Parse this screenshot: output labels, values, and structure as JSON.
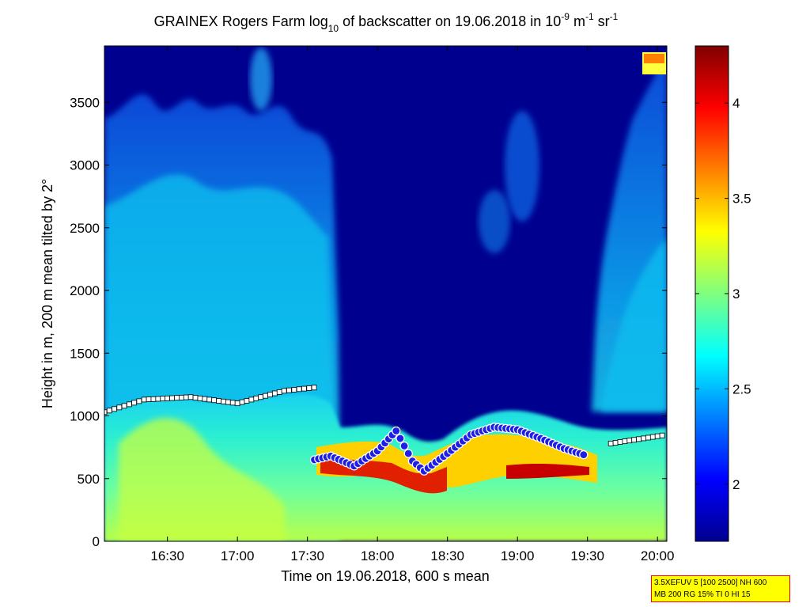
{
  "chart_data": {
    "type": "heatmap",
    "title": {
      "pre": "GRAINEX Rogers Farm log",
      "sub": "10",
      "mid": " of backscatter on 19.06.2018 in 10",
      "sup1": "-9",
      "unit1": " m",
      "sup2": "-1",
      "unit2": " sr",
      "sup3": "-1"
    },
    "xlabel": "Time on 19.06.2018, 600 s mean",
    "ylabel": "Height in m, 200 m mean tilted by 2°",
    "x_range": [
      "16:03",
      "20:04"
    ],
    "x_ticks": [
      "16:30",
      "17:00",
      "17:30",
      "18:00",
      "18:30",
      "19:00",
      "19:30",
      "20:00"
    ],
    "ylim": [
      0,
      3950
    ],
    "y_ticks": [
      "0",
      "500",
      "1000",
      "1500",
      "2000",
      "2500",
      "3000",
      "3500"
    ],
    "colorbar": {
      "range": [
        1.7,
        4.3
      ],
      "ticks": [
        "2",
        "2.5",
        "3",
        "3.5",
        "4"
      ],
      "colormap": "jet"
    },
    "colors": {
      "background_sky": "#00008f",
      "aerosol_layer": "#bfff40",
      "mixing_layer_top_marker": "#1e1ee6",
      "high_backscatter": "#c80000"
    },
    "mixing_layer_height": {
      "x": [
        "17:33",
        "17:40",
        "17:50",
        "18:00",
        "18:08",
        "18:15",
        "18:20",
        "18:30",
        "18:40",
        "18:50",
        "19:00",
        "19:10",
        "19:20",
        "19:30"
      ],
      "y": [
        650,
        680,
        600,
        720,
        880,
        640,
        560,
        700,
        850,
        910,
        890,
        820,
        740,
        680
      ]
    },
    "layer_tops": {
      "x": [
        "16:03",
        "16:20",
        "16:40",
        "17:00",
        "17:20",
        "17:35",
        "19:40",
        "20:04"
      ],
      "y": [
        1030,
        1130,
        1150,
        1100,
        1200,
        1230,
        780,
        850
      ]
    },
    "info_lines": [
      "3.5XEFUV 5 [100 2500] NH 600",
      "MB 200 RG 15% TI 0 HI 15"
    ]
  }
}
